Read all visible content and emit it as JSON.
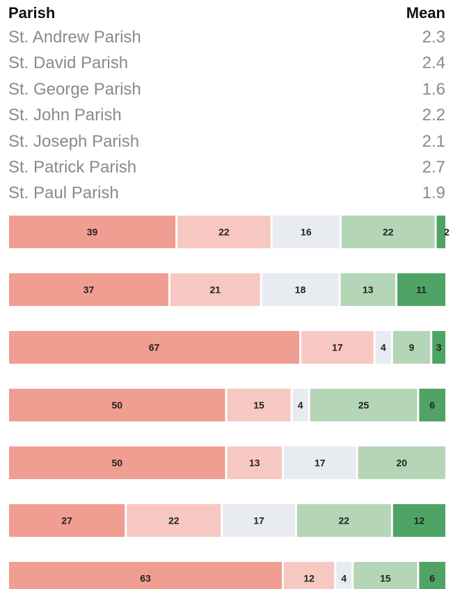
{
  "table": {
    "header_left": "Parish",
    "header_right": "Mean"
  },
  "colors": [
    "#f09e92",
    "#f7c8c1",
    "#e8ebf0",
    "#b5d5b7",
    "#4ea365"
  ],
  "chart_data": {
    "type": "bar",
    "orientation": "horizontal",
    "stacked": true,
    "normalized": true,
    "categories": [
      "St. Andrew Parish",
      "St. David Parish",
      "St. George Parish",
      "St. John Parish",
      "St. Joseph Parish",
      "St. Patrick Parish",
      "St. Paul Parish"
    ],
    "means": [
      "2.3",
      "2.4",
      "1.6",
      "2.2",
      "2.1",
      "2.7",
      "1.9"
    ],
    "segments": [
      [
        39,
        22,
        16,
        22,
        2
      ],
      [
        37,
        21,
        18,
        13,
        11
      ],
      [
        67,
        17,
        4,
        9,
        3
      ],
      [
        50,
        15,
        4,
        25,
        6
      ],
      [
        50,
        13,
        17,
        20,
        0
      ],
      [
        27,
        22,
        17,
        22,
        12
      ],
      [
        63,
        12,
        4,
        15,
        6
      ]
    ],
    "legend": "none",
    "grid": false
  }
}
